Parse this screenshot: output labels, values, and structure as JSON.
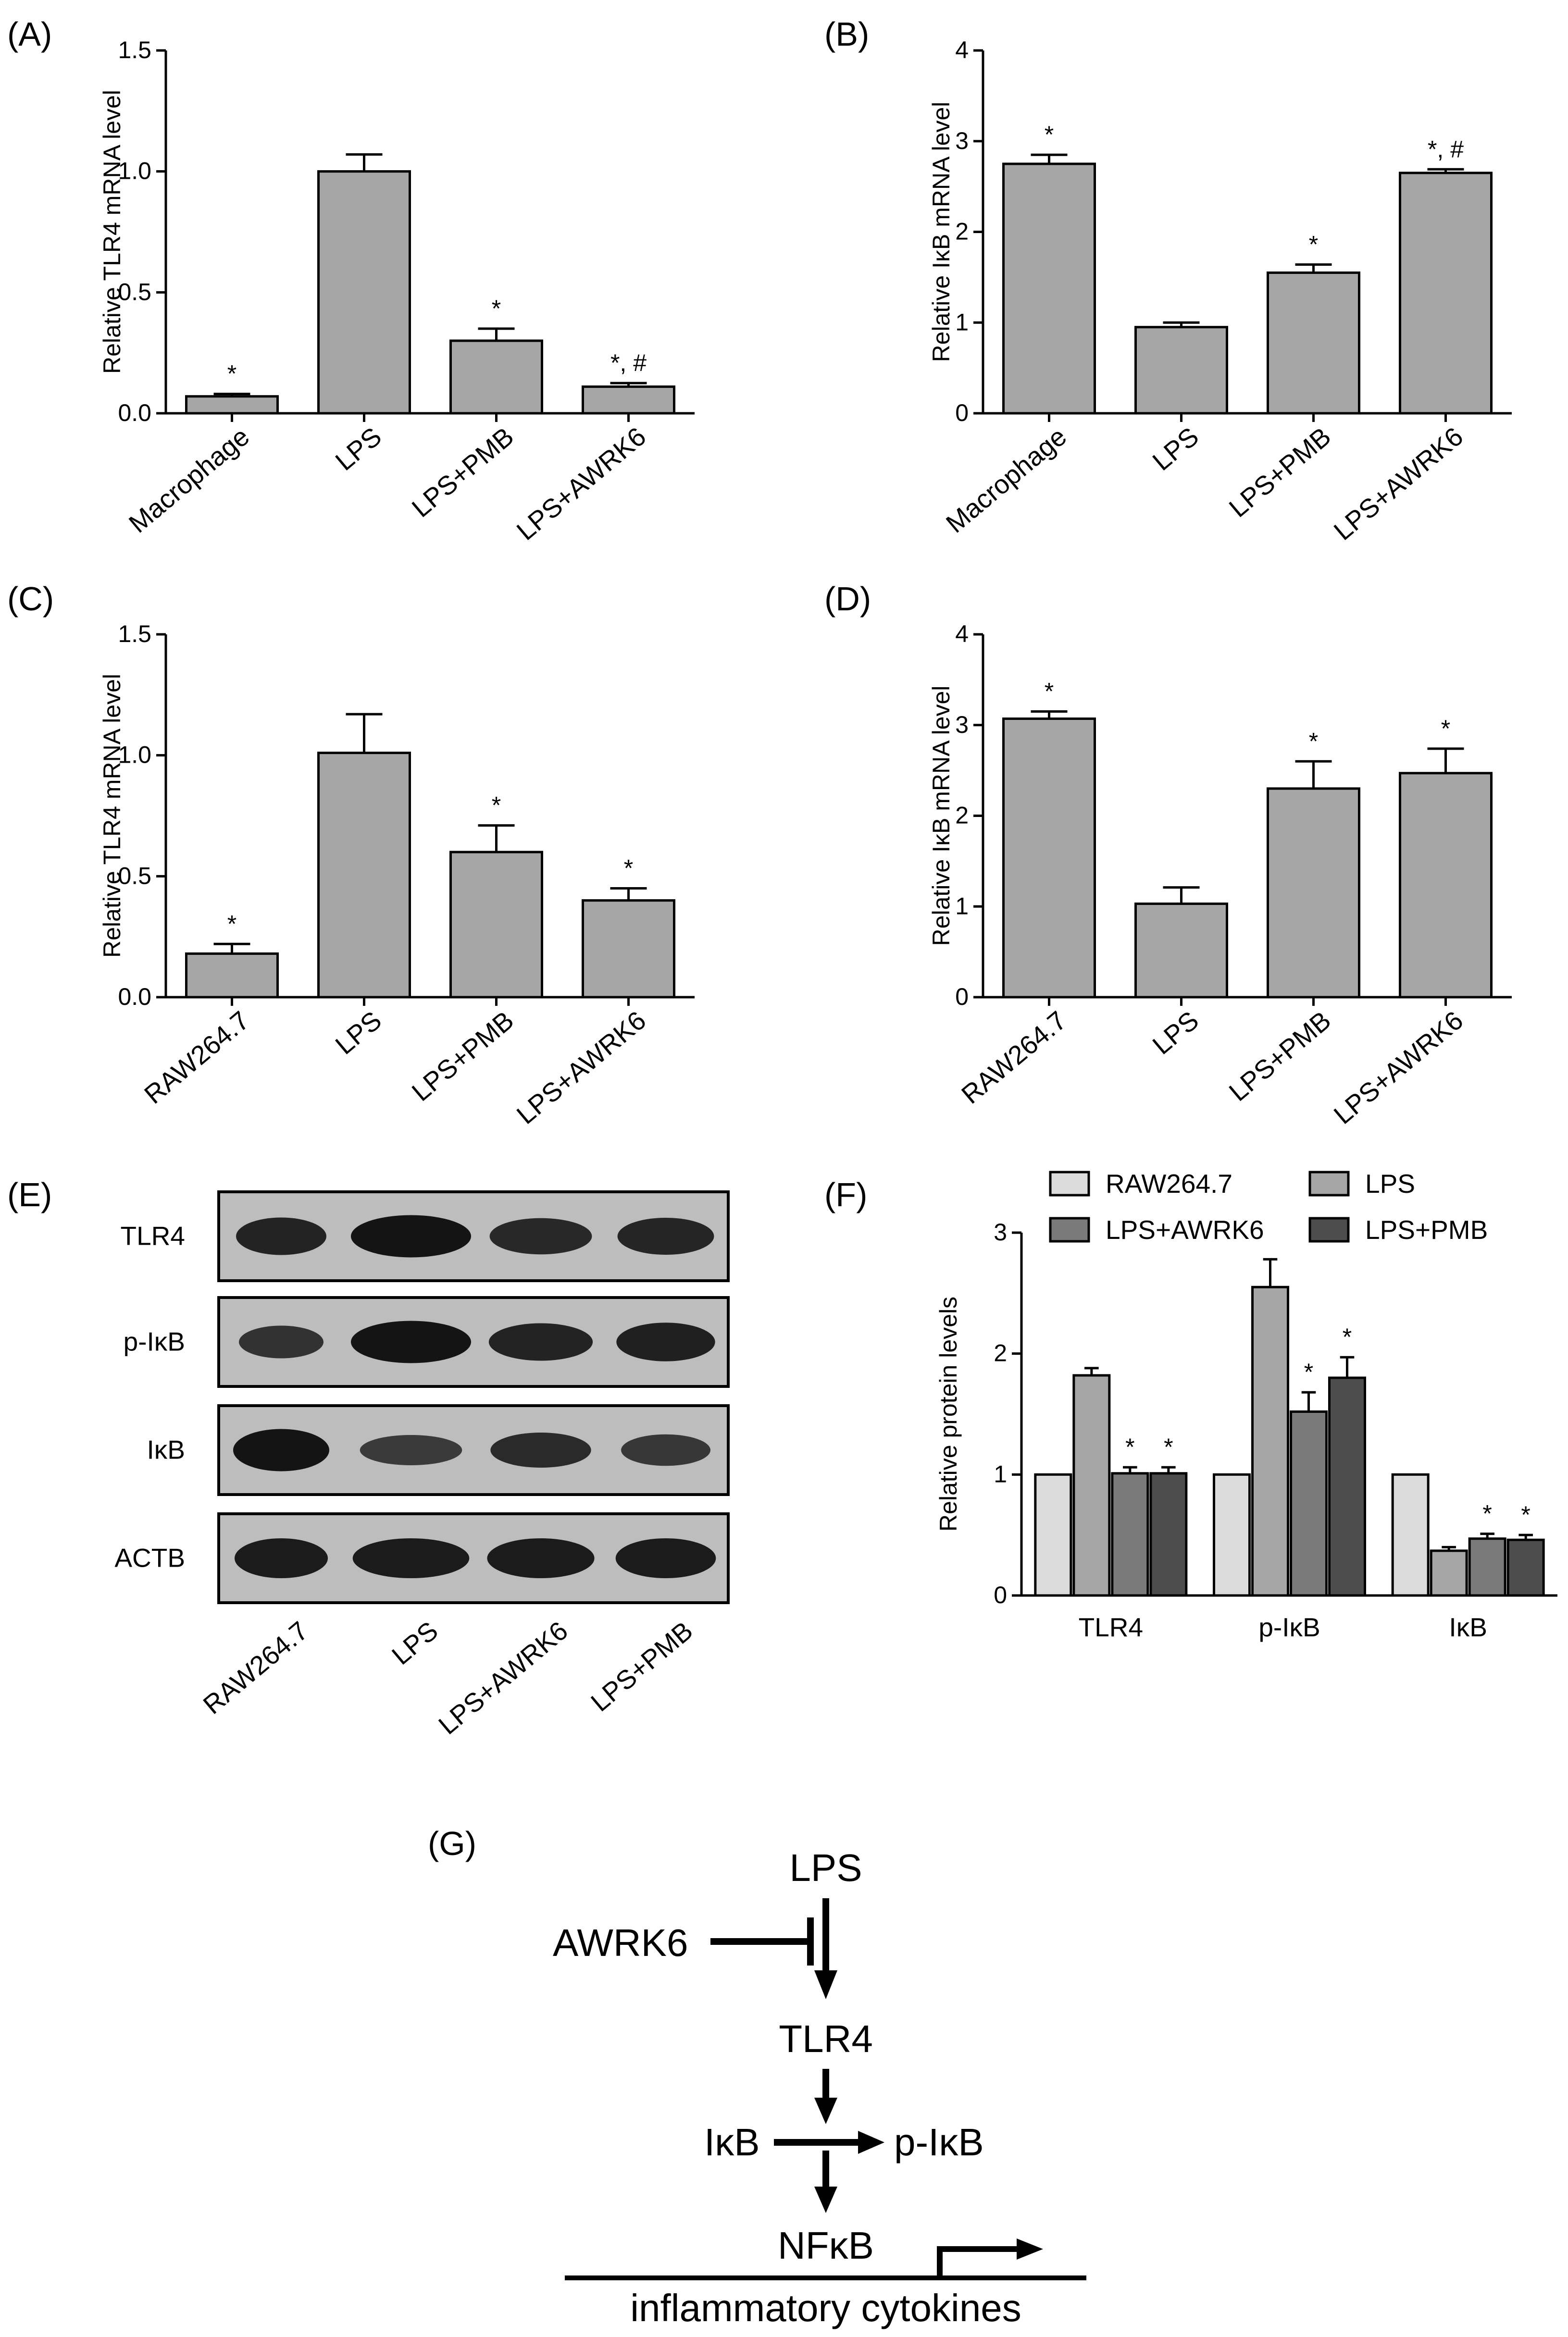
{
  "colors": {
    "bar": "#a6a6a6",
    "stroke": "#000000",
    "blot_band": "#141414",
    "blot_bg": "#bdbdbd"
  },
  "chart_data": [
    {
      "panel": "(A)",
      "type": "bar",
      "categories": [
        "Macrophage",
        "LPS",
        "LPS+PMB",
        "LPS+AWRK6"
      ],
      "values": [
        0.07,
        1.0,
        0.3,
        0.11
      ],
      "errors": [
        0.01,
        0.07,
        0.05,
        0.015
      ],
      "annotations": [
        "*",
        "",
        "*",
        "*, #"
      ],
      "ylabel": "Relative TLR4 mRNA level",
      "ylim": [
        0,
        1.5
      ],
      "yticks": [
        "0.0",
        "0.5",
        "1.0",
        "1.5"
      ]
    },
    {
      "panel": "(B)",
      "type": "bar",
      "categories": [
        "Macrophage",
        "LPS",
        "LPS+PMB",
        "LPS+AWRK6"
      ],
      "values": [
        2.75,
        0.95,
        1.55,
        2.65
      ],
      "errors": [
        0.1,
        0.05,
        0.09,
        0.04
      ],
      "annotations": [
        "*",
        "",
        "*",
        "*, #"
      ],
      "ylabel": "Relative IκB mRNA level",
      "ylim": [
        0,
        4
      ],
      "yticks": [
        "0",
        "1",
        "2",
        "3",
        "4"
      ]
    },
    {
      "panel": "(C)",
      "type": "bar",
      "categories": [
        "RAW264.7",
        "LPS",
        "LPS+PMB",
        "LPS+AWRK6"
      ],
      "values": [
        0.18,
        1.01,
        0.6,
        0.4
      ],
      "errors": [
        0.04,
        0.16,
        0.11,
        0.05
      ],
      "annotations": [
        "*",
        "",
        "*",
        "*"
      ],
      "ylabel": "Relative TLR4 mRNA level",
      "ylim": [
        0,
        1.5
      ],
      "yticks": [
        "0.0",
        "0.5",
        "1.0",
        "1.5"
      ]
    },
    {
      "panel": "(D)",
      "type": "bar",
      "categories": [
        "RAW264.7",
        "LPS",
        "LPS+PMB",
        "LPS+AWRK6"
      ],
      "values": [
        3.07,
        1.03,
        2.3,
        2.47
      ],
      "errors": [
        0.08,
        0.18,
        0.3,
        0.27
      ],
      "annotations": [
        "*",
        "",
        "*",
        "*"
      ],
      "ylabel": "Relative IκB mRNA level",
      "ylim": [
        0,
        4
      ],
      "yticks": [
        "0",
        "1",
        "2",
        "3",
        "4"
      ]
    },
    {
      "panel": "(F)",
      "type": "bar",
      "categories": [
        "TLR4",
        "p-IκB",
        "IκB"
      ],
      "series": [
        {
          "name": "RAW264.7",
          "color": "#dcdcdc",
          "values": [
            1.0,
            1.0,
            1.0
          ],
          "errors": [
            0,
            0,
            0
          ],
          "annotations": [
            "",
            "",
            ""
          ]
        },
        {
          "name": "LPS",
          "color": "#a6a6a6",
          "values": [
            1.82,
            2.55,
            0.37
          ],
          "errors": [
            0.06,
            0.23,
            0.03
          ],
          "annotations": [
            "",
            "",
            ""
          ]
        },
        {
          "name": "LPS+AWRK6",
          "color": "#7a7a7a",
          "values": [
            1.01,
            1.52,
            0.47
          ],
          "errors": [
            0.05,
            0.16,
            0.04
          ],
          "annotations": [
            "*",
            "*",
            "*"
          ]
        },
        {
          "name": "LPS+PMB",
          "color": "#4d4d4d",
          "values": [
            1.01,
            1.8,
            0.46
          ],
          "errors": [
            0.05,
            0.17,
            0.04
          ],
          "annotations": [
            "*",
            "*",
            "*"
          ]
        }
      ],
      "ylabel": "Relative protein levels",
      "ylim": [
        0,
        3
      ],
      "yticks": [
        "0",
        "1",
        "2",
        "3"
      ],
      "legend": "top"
    }
  ],
  "blot": {
    "panel": "(E)",
    "rows": [
      "TLR4",
      "p-IκB",
      "IκB",
      "ACTB"
    ],
    "lanes": [
      "RAW264.7",
      "LPS",
      "LPS+AWRK6",
      "LPS+PMB"
    ],
    "intensity": [
      [
        0.8,
        1.0,
        0.75,
        0.78
      ],
      [
        0.6,
        1.0,
        0.8,
        0.85
      ],
      [
        1.0,
        0.5,
        0.7,
        0.55
      ],
      [
        0.9,
        0.9,
        0.9,
        0.9
      ]
    ]
  },
  "diagram": {
    "panel": "(G)",
    "lps": "LPS",
    "awrk6": "AWRK6",
    "tlr4": "TLR4",
    "ikb": "IκB",
    "pikb": "p-IκB",
    "nfkb": "NFκB",
    "cytokines": "inflammatory cytokines"
  }
}
